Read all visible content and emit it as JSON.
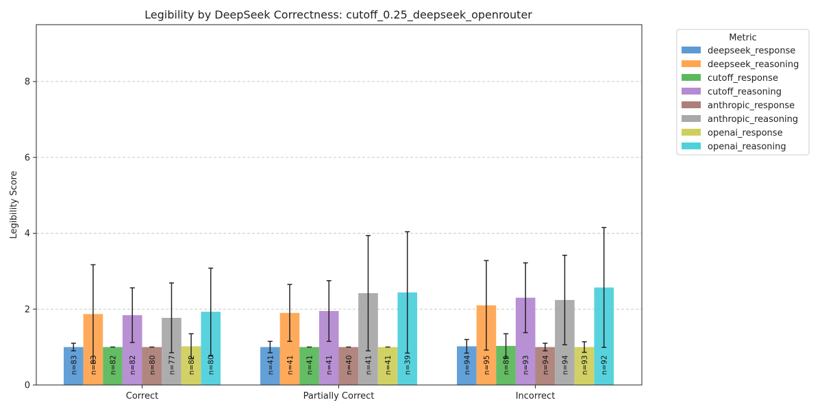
{
  "chart_data": {
    "type": "bar",
    "title": "Legibility by DeepSeek Correctness: cutoff_0.25_deepseek_openrouter",
    "xlabel": "",
    "ylabel": "Legibility Score",
    "ylim": [
      0,
      9.5
    ],
    "yticks": [
      0,
      2,
      4,
      6,
      8
    ],
    "grid": "y-dashed",
    "legend_title": "Metric",
    "legend_position": "outside-right",
    "categories": [
      "Correct",
      "Partially Correct",
      "Incorrect"
    ],
    "series": [
      {
        "name": "deepseek_response",
        "color": "#5b9bd5",
        "values": [
          1.0,
          1.0,
          1.02
        ],
        "err": [
          0.1,
          0.15,
          0.18
        ],
        "n": [
          "n=83",
          "n=41",
          "n=94"
        ]
      },
      {
        "name": "deepseek_reasoning",
        "color": "#ffa552",
        "values": [
          1.87,
          1.9,
          2.1
        ],
        "err": [
          1.3,
          0.75,
          1.18
        ],
        "n": [
          "n=83",
          "n=41",
          "n=95"
        ]
      },
      {
        "name": "cutoff_response",
        "color": "#5cb85c",
        "values": [
          1.0,
          1.0,
          1.03
        ],
        "err": [
          0.0,
          0.0,
          0.32
        ],
        "n": [
          "n=82",
          "n=41",
          "n=89"
        ]
      },
      {
        "name": "cutoff_reasoning",
        "color": "#b48ad2",
        "values": [
          1.84,
          1.95,
          2.3
        ],
        "err": [
          0.72,
          0.8,
          0.92
        ],
        "n": [
          "n=82",
          "n=41",
          "n=93"
        ]
      },
      {
        "name": "anthropic_response",
        "color": "#ad7f78",
        "values": [
          1.0,
          1.0,
          1.0
        ],
        "err": [
          0.0,
          0.0,
          0.1
        ],
        "n": [
          "n=80",
          "n=40",
          "n=94"
        ]
      },
      {
        "name": "anthropic_reasoning",
        "color": "#a9a9a9",
        "values": [
          1.77,
          2.42,
          2.24
        ],
        "err": [
          0.92,
          1.52,
          1.18
        ],
        "n": [
          "n=77",
          "n=41",
          "n=94"
        ]
      },
      {
        "name": "openai_response",
        "color": "#cfcf5e",
        "values": [
          1.02,
          1.0,
          1.0
        ],
        "err": [
          0.33,
          0.0,
          0.14
        ],
        "n": [
          "n=82",
          "n=41",
          "n=93"
        ]
      },
      {
        "name": "openai_reasoning",
        "color": "#4fd1dc",
        "values": [
          1.93,
          2.44,
          2.57
        ],
        "err": [
          1.15,
          1.6,
          1.58
        ],
        "n": [
          "n=80",
          "n=39",
          "n=92"
        ]
      }
    ]
  }
}
